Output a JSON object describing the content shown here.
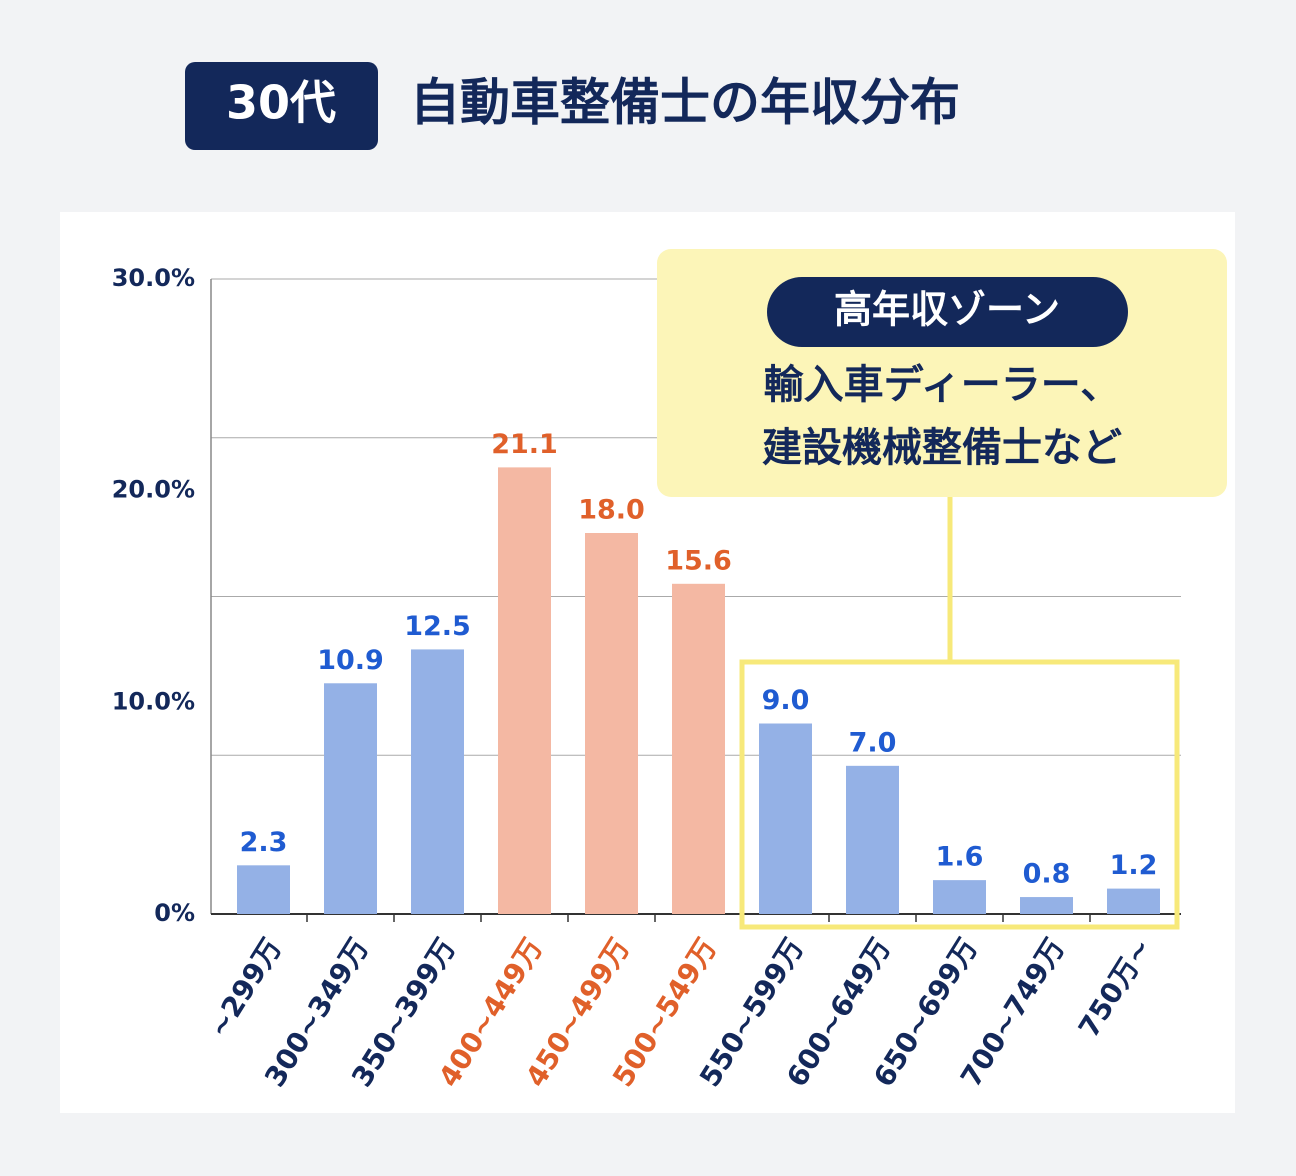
{
  "chart_data": {
    "type": "bar",
    "badge": "30代",
    "title": "自動車整備士の年収分布",
    "categories": [
      "~299万",
      "300~349万",
      "350~399万",
      "400~449万",
      "450~499万",
      "500~549万",
      "550~599万",
      "600~649万",
      "650~699万",
      "700~749万",
      "750万~"
    ],
    "values": [
      2.3,
      10.9,
      12.5,
      21.1,
      18.0,
      15.6,
      9.0,
      7.0,
      1.6,
      0.8,
      1.2
    ],
    "value_labels": [
      "2.3",
      "10.9",
      "12.5",
      "21.1",
      "18.0",
      "15.6",
      "9.0",
      "7.0",
      "1.6",
      "0.8",
      "1.2"
    ],
    "colors": [
      "#94b1e6",
      "#94b1e6",
      "#94b1e6",
      "#f4b8a3",
      "#f4b8a3",
      "#f4b8a3",
      "#94b1e6",
      "#94b1e6",
      "#94b1e6",
      "#94b1e6",
      "#94b1e6"
    ],
    "label_colors": [
      "#1f5bd1",
      "#1f5bd1",
      "#1f5bd1",
      "#e0602a",
      "#e0602a",
      "#e0602a",
      "#1f5bd1",
      "#1f5bd1",
      "#1f5bd1",
      "#1f5bd1",
      "#1f5bd1"
    ],
    "category_colors": [
      "#13285a",
      "#13285a",
      "#13285a",
      "#e0602a",
      "#e0602a",
      "#e0602a",
      "#13285a",
      "#13285a",
      "#13285a",
      "#13285a",
      "#13285a"
    ],
    "ylim": [
      0,
      30
    ],
    "yticks": [
      {
        "value": 0,
        "label": "0%"
      },
      {
        "value": 10,
        "label": "10.0%"
      },
      {
        "value": 20,
        "label": "20.0%"
      },
      {
        "value": 30,
        "label": "30.0%"
      }
    ],
    "gridlines": [
      7.5,
      15,
      22.5,
      30
    ],
    "grid": true
  },
  "callout": {
    "tag": "高年収ゾーン",
    "lines": [
      "輸入車ディーラー、",
      "建設機械整備士など"
    ]
  }
}
